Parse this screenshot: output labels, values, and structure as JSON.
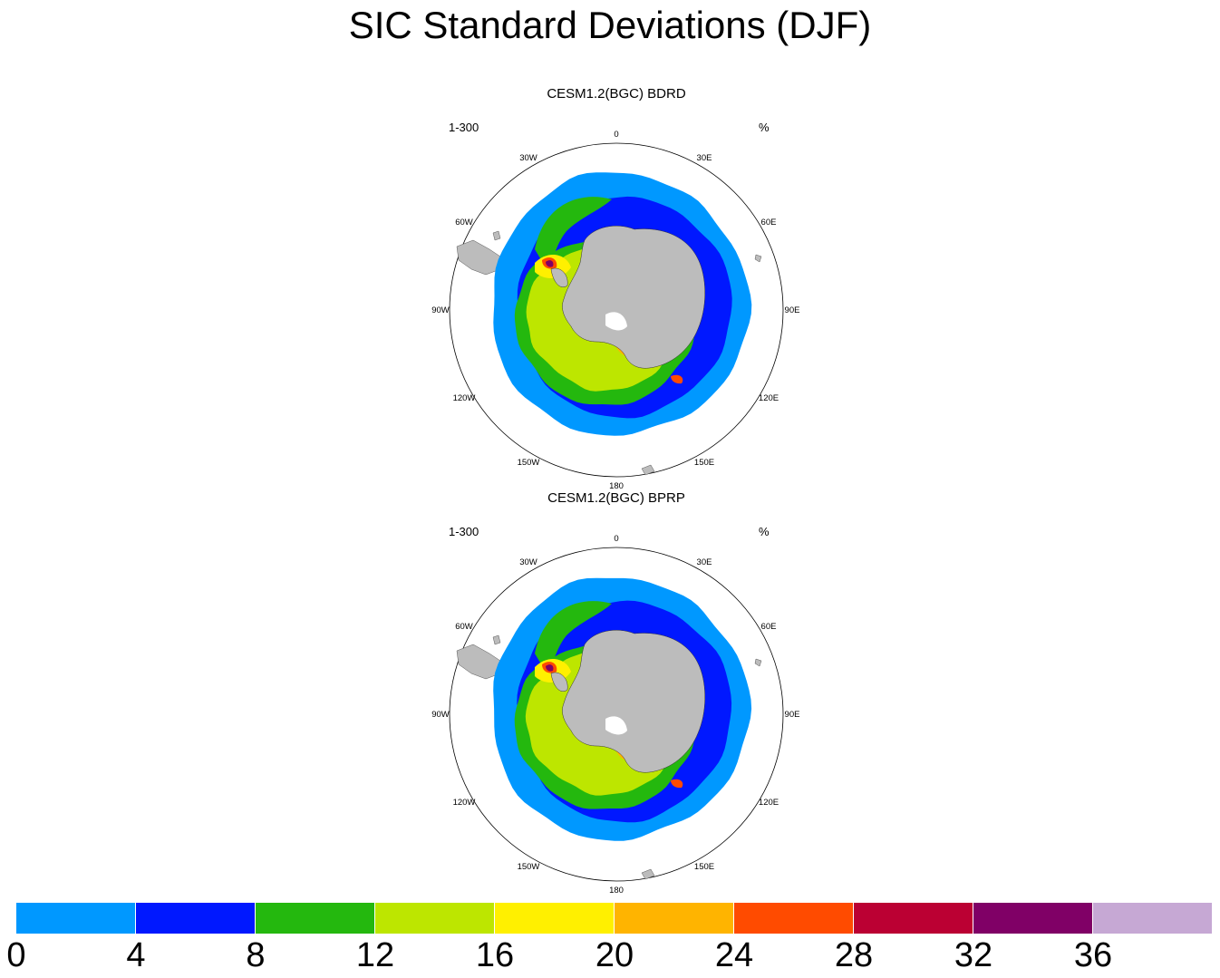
{
  "title": "SIC Standard Deviations (DJF)",
  "panels": [
    {
      "title": "CESM1.2(BGC) BDRD",
      "left_label": "1-300",
      "right_label": "%"
    },
    {
      "title": "CESM1.2(BGC) BPRP",
      "left_label": "1-300",
      "right_label": "%"
    }
  ],
  "longitude_labels": [
    "0",
    "30E",
    "60E",
    "90E",
    "120E",
    "150E",
    "180",
    "150W",
    "120W",
    "90W",
    "60W",
    "30W"
  ],
  "colorbar": {
    "ticks": [
      "0",
      "4",
      "8",
      "12",
      "16",
      "20",
      "24",
      "28",
      "32",
      "36"
    ],
    "colors": [
      "#0098ff",
      "#0018ff",
      "#24b80e",
      "#bde600",
      "#fff000",
      "#ffb400",
      "#ff4b00",
      "#bb0033",
      "#800066",
      "#c6a8d4"
    ]
  },
  "map_colors": {
    "land": "#bcbcbc",
    "outer": "#0098ff",
    "inner": "#0018ff",
    "green": "#24b80e",
    "light_green": "#bde600",
    "yellow": "#fff000",
    "orange": "#ffb400",
    "red": "#ff4b00",
    "purple": "#800066"
  }
}
